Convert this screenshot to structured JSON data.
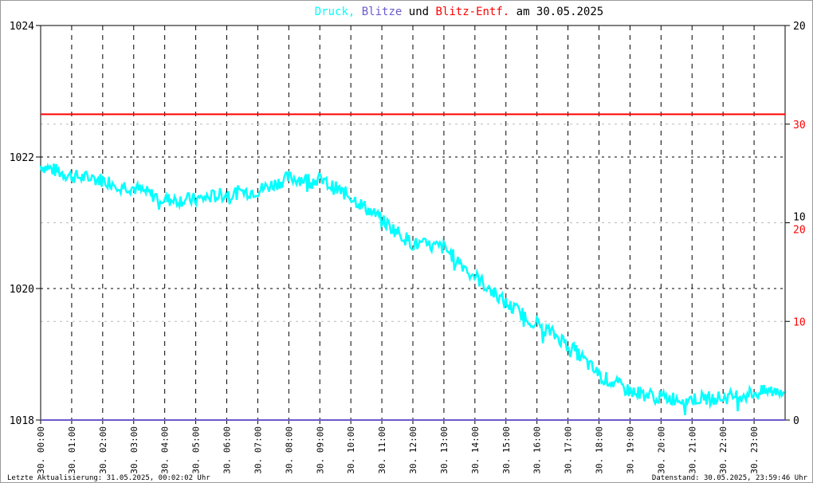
{
  "chart_data": {
    "type": "line",
    "title": {
      "parts": [
        {
          "text": "Druck,",
          "color": "#00ffff"
        },
        {
          "text": "Blitze",
          "color": "#6a5acd"
        },
        {
          "text": "und",
          "color": "#000000"
        },
        {
          "text": "Blitz-Entf.",
          "color": "#ff0000"
        },
        {
          "text": "am 30.05.2025",
          "color": "#000000"
        }
      ]
    },
    "x_ticks": [
      "30. 00:00",
      "30. 01:00",
      "30. 02:00",
      "30. 03:00",
      "30. 04:00",
      "30. 05:00",
      "30. 06:00",
      "30. 07:00",
      "30. 08:00",
      "30. 09:00",
      "30. 10:00",
      "30. 11:00",
      "30. 12:00",
      "30. 13:00",
      "30. 14:00",
      "30. 15:00",
      "30. 16:00",
      "30. 17:00",
      "30. 18:00",
      "30. 19:00",
      "30. 20:00",
      "30. 21:00",
      "30. 22:00",
      "30. 23:00"
    ],
    "y_left": {
      "range": [
        1018,
        1024
      ],
      "ticks": [
        "1018",
        "1020",
        "1022",
        "1024"
      ]
    },
    "y_right_black": {
      "range": [
        0,
        20
      ],
      "ticks": [
        "0",
        "10",
        "20"
      ]
    },
    "y_right_red": {
      "range": [
        0,
        40
      ],
      "ticks": [
        "10",
        "20",
        "30"
      ]
    },
    "series": [
      {
        "name": "Druck",
        "color": "#00ffff",
        "axis": "left",
        "x_hours": [
          0,
          1,
          2,
          3,
          4,
          5,
          6,
          7,
          8,
          9,
          10,
          11,
          12,
          13,
          14,
          15,
          16,
          17,
          18,
          19,
          20,
          21,
          22,
          23,
          24
        ],
        "values": [
          1021.87,
          1021.71,
          1021.65,
          1021.53,
          1021.35,
          1021.35,
          1021.44,
          1021.49,
          1021.68,
          1021.65,
          1021.4,
          1021.04,
          1020.68,
          1020.62,
          1020.19,
          1019.77,
          1019.47,
          1019.16,
          1018.68,
          1018.44,
          1018.34,
          1018.32,
          1018.34,
          1018.41,
          1018.46
        ]
      },
      {
        "name": "Blitze",
        "color": "#6a5acd",
        "axis": "right_black",
        "x_hours": [
          0,
          24
        ],
        "values": [
          0,
          0
        ]
      },
      {
        "name": "Blitz-Entf.",
        "color": "#ff0000",
        "axis": "right_red",
        "x_hours": [
          0,
          24
        ],
        "values": [
          31,
          31
        ]
      }
    ]
  },
  "footer": {
    "left": "Letzte Aktualisierung: 31.05.2025, 00:02:02 Uhr",
    "right": "Datenstand: 30.05.2025, 23:59:46 Uhr"
  }
}
